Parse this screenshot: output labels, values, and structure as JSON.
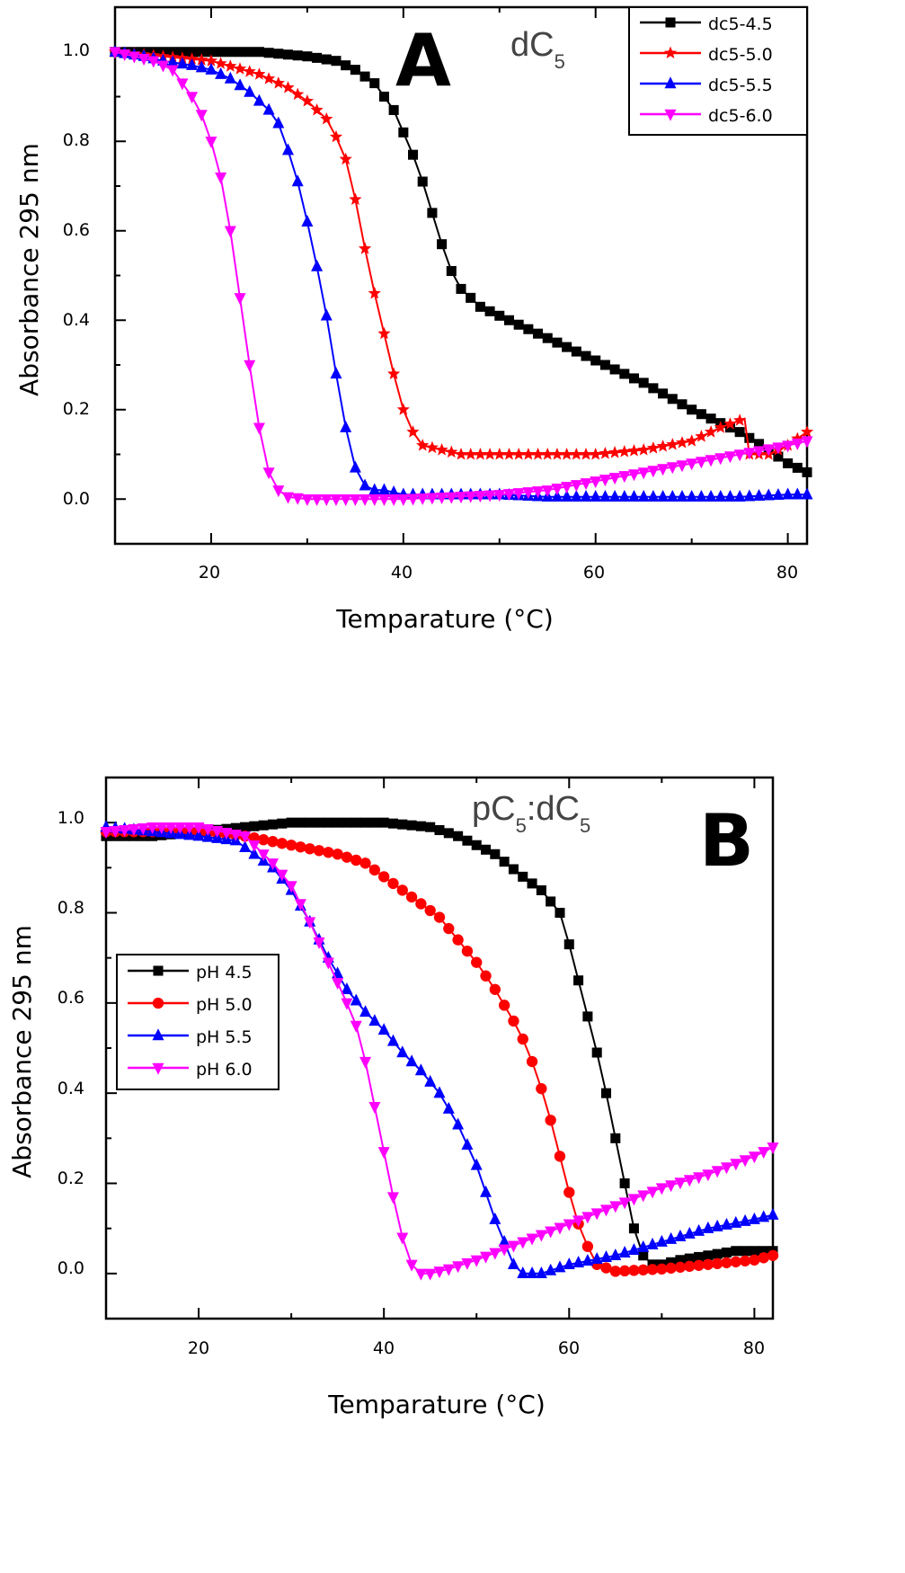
{
  "chart_data": [
    {
      "type": "line",
      "panel": "A",
      "inset_label": {
        "main": "dC",
        "sub": "5"
      },
      "xlabel": "Temparature (°C)",
      "ylabel": "Absorbance 295 nm",
      "xlim": [
        10,
        82
      ],
      "ylim": [
        -0.1,
        1.1
      ],
      "xticks": [
        20,
        40,
        60,
        80
      ],
      "yticks": [
        0.0,
        0.2,
        0.4,
        0.6,
        0.8,
        1.0
      ],
      "xtick_labels": [
        "20",
        "40",
        "60",
        "80"
      ],
      "ytick_labels": [
        "0.0",
        "0.2",
        "0.4",
        "0.6",
        "0.8",
        "1.0"
      ],
      "legend_position": "top-right",
      "series": [
        {
          "name": "dc5-4.5",
          "color": "#000000",
          "marker": "square",
          "x": [
            10,
            15,
            20,
            25,
            30,
            33,
            35,
            37,
            39,
            40,
            41,
            42,
            43,
            44,
            45,
            46,
            47,
            48,
            50,
            55,
            60,
            65,
            70,
            75,
            78,
            80,
            82
          ],
          "y": [
            1.0,
            1.0,
            1.0,
            1.0,
            0.99,
            0.98,
            0.96,
            0.93,
            0.87,
            0.82,
            0.77,
            0.71,
            0.64,
            0.57,
            0.51,
            0.47,
            0.45,
            0.43,
            0.41,
            0.36,
            0.31,
            0.26,
            0.2,
            0.15,
            0.11,
            0.08,
            0.06
          ]
        },
        {
          "name": "dc5-5.0",
          "color": "#ff0000",
          "marker": "star",
          "x": [
            10,
            15,
            20,
            25,
            28,
            30,
            32,
            33,
            34,
            35,
            36,
            37,
            38,
            39,
            40,
            41,
            42,
            44,
            46,
            50,
            55,
            60,
            65,
            70,
            73,
            75.5,
            76,
            78,
            80,
            82
          ],
          "y": [
            1.0,
            0.99,
            0.98,
            0.95,
            0.92,
            0.89,
            0.85,
            0.81,
            0.76,
            0.67,
            0.56,
            0.46,
            0.37,
            0.28,
            0.2,
            0.15,
            0.12,
            0.11,
            0.1,
            0.1,
            0.1,
            0.1,
            0.11,
            0.13,
            0.16,
            0.18,
            0.1,
            0.1,
            0.12,
            0.15
          ]
        },
        {
          "name": "dc5-5.5",
          "color": "#0000ff",
          "marker": "triangle-up",
          "x": [
            10,
            13,
            15,
            18,
            20,
            22,
            24,
            26,
            27,
            28,
            29,
            30,
            31,
            32,
            33,
            34,
            35,
            36,
            37,
            38,
            40,
            45,
            50,
            55,
            60,
            65,
            70,
            75,
            80,
            82
          ],
          "y": [
            1.0,
            0.99,
            0.98,
            0.97,
            0.96,
            0.94,
            0.91,
            0.87,
            0.84,
            0.78,
            0.71,
            0.62,
            0.52,
            0.41,
            0.28,
            0.16,
            0.07,
            0.03,
            0.02,
            0.02,
            0.01,
            0.01,
            0.01,
            0.005,
            0.005,
            0.005,
            0.005,
            0.005,
            0.01,
            0.01
          ]
        },
        {
          "name": "dc5-6.0",
          "color": "#ff00ff",
          "marker": "triangle-down",
          "x": [
            10,
            12,
            14,
            16,
            17,
            18,
            19,
            20,
            21,
            22,
            23,
            24,
            25,
            26,
            27,
            28,
            30,
            35,
            40,
            45,
            50,
            55,
            60,
            65,
            70,
            75,
            80,
            82
          ],
          "y": [
            1.0,
            0.99,
            0.98,
            0.96,
            0.93,
            0.9,
            0.86,
            0.8,
            0.72,
            0.6,
            0.45,
            0.3,
            0.16,
            0.06,
            0.02,
            0.005,
            0.0,
            0.0,
            0.0,
            0.005,
            0.01,
            0.02,
            0.04,
            0.06,
            0.08,
            0.1,
            0.12,
            0.13
          ]
        }
      ]
    },
    {
      "type": "line",
      "panel": "B",
      "inset_label": {
        "main1": "pC",
        "sub1": "5",
        "main2": ":dC",
        "sub2": "5"
      },
      "xlabel": "Temparature (°C)",
      "ylabel": "Absorbance 295 nm",
      "xlim": [
        10,
        82
      ],
      "ylim": [
        -0.1,
        1.1
      ],
      "xticks": [
        20,
        40,
        60,
        80
      ],
      "yticks": [
        0.0,
        0.2,
        0.4,
        0.6,
        0.8,
        1.0
      ],
      "xtick_labels": [
        "20",
        "40",
        "60",
        "80"
      ],
      "ytick_labels": [
        "0.0",
        "0.2",
        "0.4",
        "0.6",
        "0.8",
        "1.0"
      ],
      "legend_position": "middle-left",
      "series": [
        {
          "name": "pH 4.5",
          "color": "#000000",
          "marker": "square",
          "x": [
            10,
            15,
            20,
            25,
            30,
            35,
            40,
            45,
            48,
            52,
            55,
            57,
            59,
            60,
            61,
            62,
            63,
            64,
            65,
            66,
            67,
            68,
            69,
            70,
            72,
            75,
            78,
            80,
            82
          ],
          "y": [
            0.97,
            0.97,
            0.98,
            0.99,
            1.0,
            1.0,
            1.0,
            0.99,
            0.97,
            0.93,
            0.88,
            0.85,
            0.8,
            0.73,
            0.65,
            0.57,
            0.49,
            0.4,
            0.3,
            0.2,
            0.1,
            0.04,
            0.02,
            0.02,
            0.03,
            0.04,
            0.05,
            0.05,
            0.05
          ]
        },
        {
          "name": "pH 5.0",
          "color": "#ff0000",
          "marker": "circle",
          "x": [
            10,
            15,
            20,
            25,
            30,
            35,
            38,
            40,
            42,
            44,
            46,
            48,
            50,
            52,
            54,
            55,
            56,
            57,
            58,
            59,
            60,
            61,
            62,
            63,
            65,
            70,
            75,
            80,
            82
          ],
          "y": [
            0.98,
            0.98,
            0.98,
            0.97,
            0.95,
            0.93,
            0.91,
            0.88,
            0.85,
            0.82,
            0.79,
            0.74,
            0.69,
            0.63,
            0.56,
            0.52,
            0.47,
            0.41,
            0.34,
            0.26,
            0.18,
            0.11,
            0.06,
            0.02,
            0.005,
            0.01,
            0.02,
            0.03,
            0.04
          ]
        },
        {
          "name": "pH 5.5",
          "color": "#0000ff",
          "marker": "triangle-up",
          "x": [
            10,
            15,
            20,
            24,
            28,
            30,
            32,
            34,
            36,
            38,
            40,
            42,
            44,
            46,
            48,
            50,
            51,
            52,
            53,
            54,
            55,
            57,
            60,
            65,
            70,
            75,
            80,
            82
          ],
          "y": [
            0.99,
            0.98,
            0.97,
            0.96,
            0.9,
            0.85,
            0.78,
            0.7,
            0.63,
            0.58,
            0.54,
            0.49,
            0.45,
            0.4,
            0.33,
            0.24,
            0.18,
            0.12,
            0.07,
            0.02,
            0.0,
            0.0,
            0.02,
            0.04,
            0.07,
            0.1,
            0.12,
            0.13
          ]
        },
        {
          "name": "pH 6.0",
          "color": "#ff00ff",
          "marker": "triangle-down",
          "x": [
            10,
            15,
            20,
            25,
            28,
            30,
            32,
            34,
            36,
            37,
            38,
            39,
            40,
            41,
            42,
            43,
            44,
            45,
            47,
            50,
            55,
            60,
            65,
            70,
            75,
            80,
            82
          ],
          "y": [
            0.98,
            0.99,
            0.99,
            0.97,
            0.91,
            0.86,
            0.78,
            0.69,
            0.6,
            0.55,
            0.47,
            0.37,
            0.27,
            0.17,
            0.08,
            0.02,
            0.0,
            0.0,
            0.01,
            0.03,
            0.07,
            0.11,
            0.15,
            0.19,
            0.22,
            0.26,
            0.28
          ]
        }
      ]
    }
  ]
}
